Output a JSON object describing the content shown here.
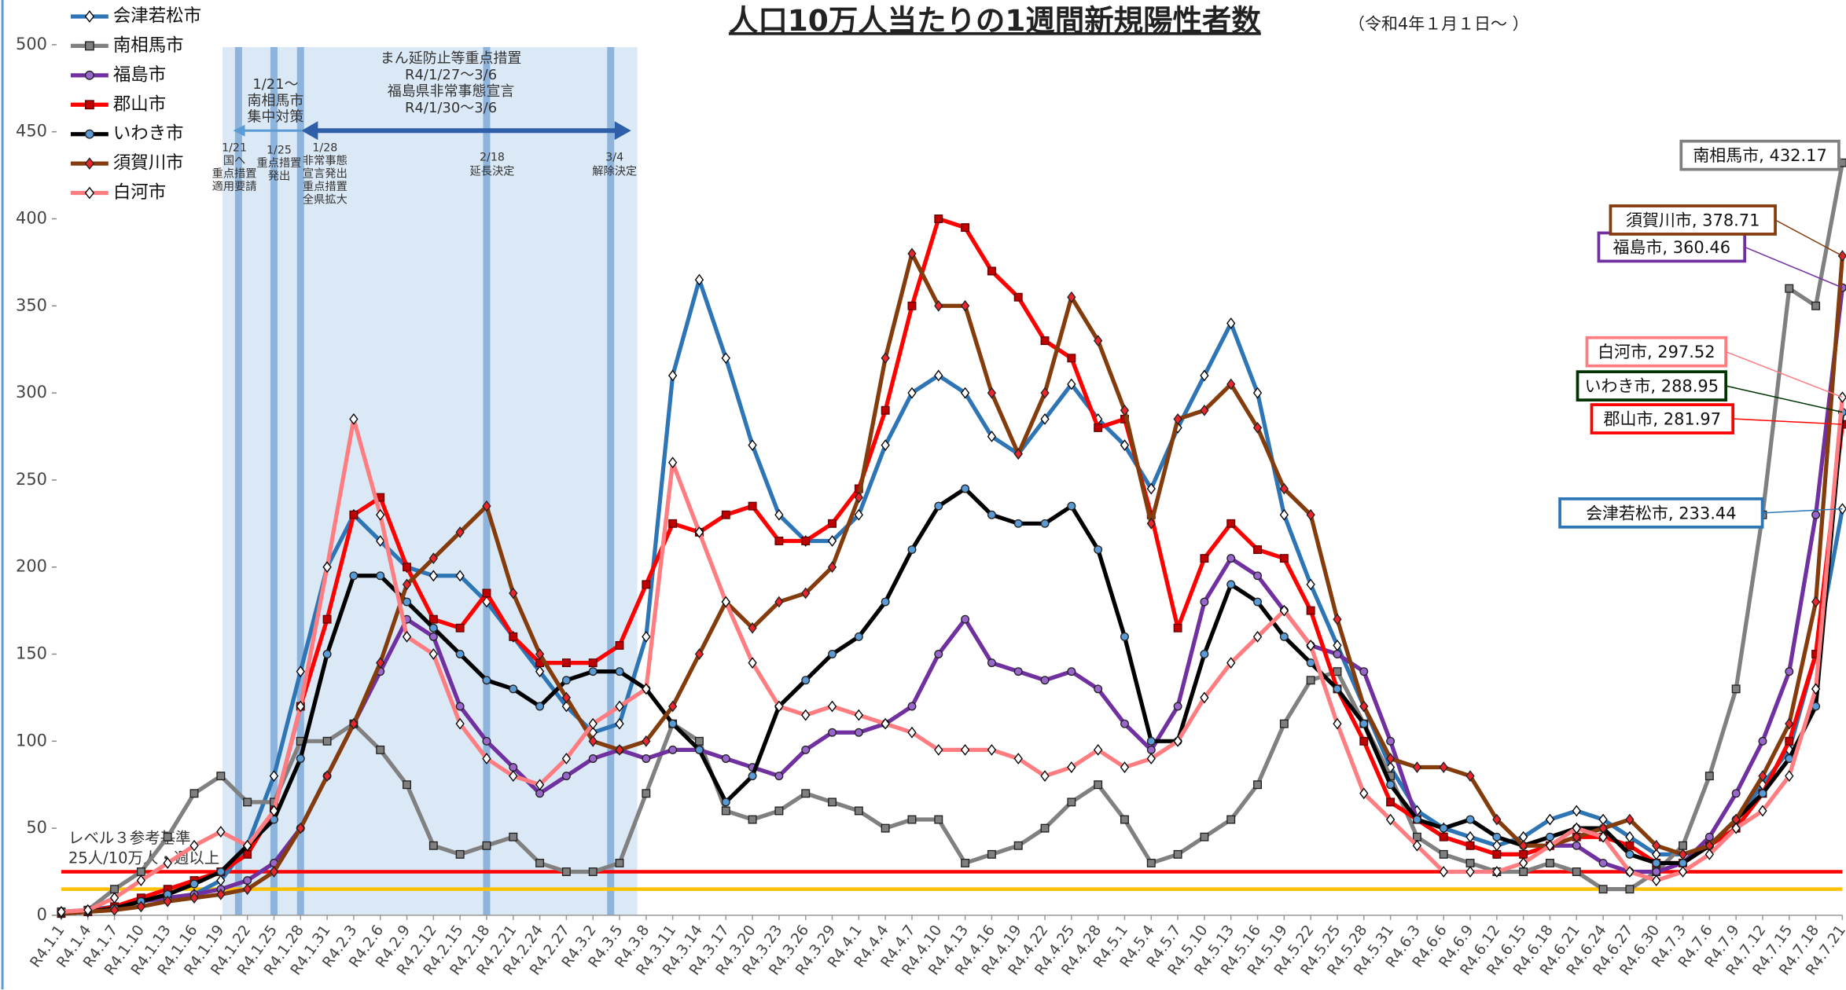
{
  "chart_data": {
    "type": "line",
    "title": "人口10万人当たりの1週間新規陽性者数",
    "subtitle": "（令和4年１月１日～ ）",
    "categories": [
      "R4.1.1",
      "R4.1.4",
      "R4.1.7",
      "R4.1.10",
      "R4.1.13",
      "R4.1.16",
      "R4.1.19",
      "R4.1.22",
      "R4.1.25",
      "R4.1.28",
      "R4.1.31",
      "R4.2.3",
      "R4.2.6",
      "R4.2.9",
      "R4.2.12",
      "R4.2.15",
      "R4.2.18",
      "R4.2.21",
      "R4.2.24",
      "R4.2.27",
      "R4.3.2",
      "R4.3.5",
      "R4.3.8",
      "R4.3.11",
      "R4.3.14",
      "R4.3.17",
      "R4.3.20",
      "R4.3.23",
      "R4.3.26",
      "R4.3.29",
      "R4.4.1",
      "R4.4.4",
      "R4.4.7",
      "R4.4.10",
      "R4.4.13",
      "R4.4.16",
      "R4.4.19",
      "R4.4.22",
      "R4.4.25",
      "R4.4.28",
      "R4.5.1",
      "R4.5.4",
      "R4.5.7",
      "R4.5.10",
      "R4.5.13",
      "R4.5.16",
      "R4.5.19",
      "R4.5.22",
      "R4.5.25",
      "R4.5.28",
      "R4.5.31",
      "R4.6.3",
      "R4.6.6",
      "R4.6.9",
      "R4.6.12",
      "R4.6.15",
      "R4.6.18",
      "R4.6.21",
      "R4.6.24",
      "R4.6.27",
      "R4.6.30",
      "R4.7.3",
      "R4.7.6",
      "R4.7.9",
      "R4.7.12",
      "R4.7.15",
      "R4.7.18",
      "R4.7.21"
    ],
    "series": [
      {
        "name": "会津若松市",
        "color": "#2e75b6",
        "marker": "diamond",
        "marker_fill": "#ffffff",
        "values": [
          2,
          3,
          5,
          8,
          10,
          12,
          20,
          40,
          80,
          140,
          200,
          230,
          215,
          200,
          195,
          195,
          180,
          160,
          140,
          120,
          105,
          110,
          160,
          310,
          365,
          320,
          270,
          230,
          215,
          215,
          230,
          270,
          300,
          310,
          300,
          275,
          265,
          285,
          305,
          285,
          270,
          245,
          280,
          310,
          340,
          300,
          230,
          190,
          155,
          120,
          85,
          60,
          50,
          45,
          40,
          45,
          55,
          60,
          55,
          45,
          35,
          35,
          40,
          55,
          75,
          95,
          150,
          233.44
        ]
      },
      {
        "name": "南相馬市",
        "color": "#808080",
        "marker": "square",
        "marker_fill": "#7f7f7f",
        "values": [
          2,
          3,
          15,
          25,
          45,
          70,
          80,
          65,
          65,
          100,
          100,
          110,
          95,
          75,
          40,
          35,
          40,
          45,
          30,
          25,
          25,
          30,
          70,
          110,
          100,
          60,
          55,
          60,
          70,
          65,
          60,
          50,
          55,
          55,
          30,
          35,
          40,
          50,
          65,
          75,
          55,
          30,
          35,
          45,
          55,
          75,
          110,
          135,
          140,
          110,
          80,
          45,
          35,
          30,
          25,
          25,
          30,
          25,
          15,
          15,
          25,
          40,
          80,
          130,
          230,
          360,
          350,
          432.17
        ]
      },
      {
        "name": "福島市",
        "color": "#7030a0",
        "marker": "circle",
        "marker_fill": "#9966cc",
        "values": [
          1,
          2,
          4,
          8,
          10,
          12,
          15,
          20,
          30,
          50,
          80,
          110,
          140,
          170,
          160,
          120,
          100,
          85,
          70,
          80,
          90,
          95,
          90,
          95,
          95,
          90,
          85,
          80,
          95,
          105,
          105,
          110,
          120,
          150,
          170,
          145,
          140,
          135,
          140,
          130,
          110,
          95,
          120,
          180,
          205,
          195,
          175,
          155,
          150,
          140,
          100,
          55,
          45,
          40,
          35,
          35,
          40,
          40,
          30,
          25,
          25,
          30,
          45,
          70,
          100,
          140,
          230,
          360.46
        ]
      },
      {
        "name": "郡山市",
        "color": "#ff0000",
        "marker": "square",
        "marker_fill": "#c00000",
        "values": [
          1,
          2,
          5,
          10,
          15,
          20,
          25,
          35,
          60,
          120,
          170,
          230,
          240,
          200,
          170,
          165,
          185,
          160,
          145,
          145,
          145,
          155,
          190,
          225,
          220,
          230,
          235,
          215,
          215,
          225,
          245,
          290,
          350,
          400,
          395,
          370,
          355,
          330,
          320,
          280,
          285,
          230,
          165,
          205,
          225,
          210,
          205,
          175,
          130,
          100,
          65,
          55,
          45,
          40,
          35,
          35,
          40,
          45,
          45,
          40,
          30,
          30,
          40,
          50,
          70,
          100,
          150,
          281.97
        ]
      },
      {
        "name": "いわき市",
        "color": "#000000",
        "marker": "circle",
        "marker_fill": "#5b9bd5",
        "values": [
          1,
          2,
          4,
          8,
          12,
          18,
          25,
          40,
          55,
          90,
          150,
          195,
          195,
          180,
          165,
          150,
          135,
          130,
          120,
          135,
          140,
          140,
          130,
          110,
          95,
          65,
          80,
          120,
          135,
          150,
          160,
          180,
          210,
          235,
          245,
          230,
          225,
          225,
          235,
          210,
          160,
          100,
          100,
          150,
          190,
          180,
          160,
          145,
          130,
          110,
          75,
          55,
          50,
          55,
          45,
          40,
          45,
          50,
          50,
          35,
          30,
          30,
          40,
          55,
          70,
          90,
          120,
          288.95
        ]
      },
      {
        "name": "須賀川市",
        "color": "#843c0c",
        "marker": "diamond",
        "marker_fill": "#e8262b",
        "values": [
          1,
          2,
          3,
          5,
          8,
          10,
          12,
          15,
          25,
          50,
          80,
          110,
          145,
          190,
          205,
          220,
          235,
          185,
          150,
          125,
          100,
          95,
          100,
          120,
          150,
          180,
          165,
          180,
          185,
          200,
          240,
          320,
          380,
          350,
          350,
          300,
          265,
          300,
          355,
          330,
          290,
          225,
          285,
          290,
          305,
          280,
          245,
          230,
          170,
          120,
          90,
          85,
          85,
          80,
          55,
          40,
          40,
          45,
          50,
          55,
          40,
          35,
          40,
          55,
          80,
          110,
          180,
          378.71
        ]
      },
      {
        "name": "白河市",
        "color": "#ff7c80",
        "marker": "diamond",
        "marker_fill": "#ffffff",
        "values": [
          2,
          3,
          10,
          20,
          30,
          40,
          48,
          40,
          60,
          120,
          200,
          285,
          230,
          160,
          150,
          110,
          90,
          80,
          75,
          90,
          110,
          120,
          130,
          260,
          220,
          180,
          145,
          120,
          115,
          120,
          115,
          110,
          105,
          95,
          95,
          95,
          90,
          80,
          85,
          95,
          85,
          90,
          100,
          125,
          145,
          160,
          175,
          155,
          110,
          70,
          55,
          40,
          25,
          25,
          25,
          30,
          40,
          50,
          45,
          25,
          20,
          25,
          35,
          50,
          60,
          80,
          130,
          297.52
        ]
      }
    ],
    "ylim": [
      0,
      500
    ],
    "yticks": [
      0,
      50,
      100,
      150,
      200,
      250,
      300,
      350,
      400,
      450,
      500
    ],
    "reference_lines": [
      {
        "value": 25,
        "color": "#ff0000"
      },
      {
        "value": 15,
        "color": "#ffc000"
      }
    ],
    "reference_label": [
      "レベル３参考基準",
      "25人/10万人・週以上"
    ],
    "annotations": [
      {
        "lines": [
          "1/21～",
          "南相馬市",
          "集中対策"
        ]
      },
      {
        "lines": [
          "まん延防止等重点措置",
          "R4/1/27～3/6",
          "福島県非常事態宣言",
          "R4/1/30～3/6"
        ]
      },
      {
        "lines": [
          "1/21",
          "国へ",
          "重点措置",
          "適用要請"
        ]
      },
      {
        "lines": [
          "1/25",
          "重点措置",
          "発出"
        ]
      },
      {
        "lines": [
          "1/28",
          "非常事態",
          "宣言発出",
          "重点措置",
          "全県拡大"
        ]
      },
      {
        "lines": [
          "2/18",
          "延長決定"
        ]
      },
      {
        "lines": [
          "3/4",
          "解除決定"
        ]
      }
    ],
    "legend": "top-left",
    "grid": false
  }
}
